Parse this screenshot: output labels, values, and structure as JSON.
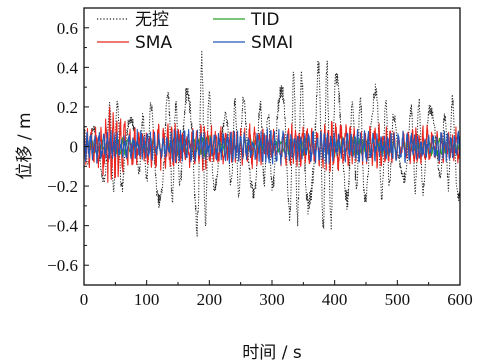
{
  "chart_data": {
    "type": "line",
    "title": "",
    "xlabel": "时间 / s",
    "ylabel": "位移 / m",
    "xlim": [
      0,
      600
    ],
    "ylim": [
      -0.7,
      0.7
    ],
    "x_ticks": [
      0,
      100,
      200,
      300,
      400,
      500,
      600
    ],
    "y_ticks": [
      -0.6,
      -0.4,
      -0.2,
      0,
      0.2,
      0.4,
      0.6
    ],
    "y_tick_labels": [
      "−0.6",
      "−0.4",
      "−0.2",
      "0",
      "0.2",
      "0.4",
      "0.6"
    ],
    "grid": false,
    "legend": {
      "placement": "top-left",
      "columns": 2
    },
    "series": [
      {
        "name": "无控",
        "color": "#222222",
        "style": "dotted",
        "envelope": {
          "x": [
            0,
            20,
            40,
            60,
            80,
            100,
            120,
            140,
            160,
            180,
            190,
            200,
            220,
            240,
            260,
            280,
            300,
            320,
            340,
            360,
            370,
            380,
            400,
            420,
            440,
            460,
            480,
            500,
            520,
            540,
            560,
            580,
            600
          ],
          "amp": [
            0.14,
            0.2,
            0.24,
            0.27,
            0.22,
            0.22,
            0.32,
            0.4,
            0.38,
            0.47,
            0.5,
            0.34,
            0.26,
            0.3,
            0.26,
            0.33,
            0.33,
            0.35,
            0.45,
            0.54,
            0.6,
            0.52,
            0.43,
            0.41,
            0.38,
            0.33,
            0.3,
            0.26,
            0.24,
            0.26,
            0.24,
            0.3,
            0.31
          ]
        }
      },
      {
        "name": "TID",
        "color": "#2ca02c",
        "style": "solid",
        "envelope": {
          "x": [
            0,
            100,
            200,
            300,
            400,
            500,
            600
          ],
          "amp": [
            0.05,
            0.05,
            0.06,
            0.05,
            0.06,
            0.05,
            0.05
          ]
        }
      },
      {
        "name": "SMA",
        "color": "#e8261f",
        "style": "solid",
        "envelope": {
          "x": [
            0,
            20,
            40,
            60,
            80,
            100,
            150,
            200,
            250,
            300,
            350,
            400,
            450,
            500,
            550,
            600
          ],
          "amp": [
            0.12,
            0.16,
            0.22,
            0.17,
            0.14,
            0.12,
            0.14,
            0.13,
            0.12,
            0.12,
            0.13,
            0.15,
            0.13,
            0.11,
            0.12,
            0.12
          ]
        }
      },
      {
        "name": "SMAI",
        "color": "#2457b8",
        "style": "solid",
        "envelope": {
          "x": [
            0,
            50,
            100,
            150,
            200,
            250,
            300,
            350,
            400,
            450,
            500,
            550,
            600
          ],
          "amp": [
            0.09,
            0.1,
            0.09,
            0.1,
            0.1,
            0.09,
            0.1,
            0.1,
            0.1,
            0.09,
            0.09,
            0.09,
            0.09
          ]
        }
      }
    ]
  }
}
